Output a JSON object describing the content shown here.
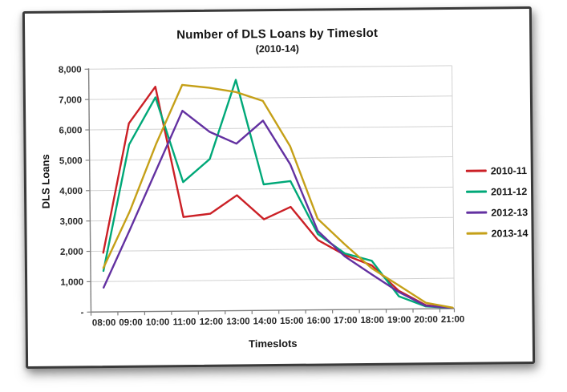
{
  "chart": {
    "title": "Number of DLS Loans by Timeslot",
    "subtitle": "(2010-14)",
    "y_axis": {
      "title": "DLS Loans"
    },
    "x_axis": {
      "title": "Timeslots"
    },
    "colors": {
      "gridline": "#d2d2d2",
      "axis": "#7f7f7f",
      "text": "#262626",
      "frame_border": "#3a3a3a",
      "background": "#ffffff"
    }
  },
  "chart_data": {
    "type": "line",
    "title": "Number of DLS Loans by Timeslot",
    "subtitle": "(2010-14)",
    "xlabel": "Timeslots",
    "ylabel": "DLS Loans",
    "ylim": [
      0,
      8000
    ],
    "y_ticks": [
      0,
      1000,
      2000,
      3000,
      4000,
      5000,
      6000,
      7000,
      8000
    ],
    "y_tick_labels": [
      "-",
      "1,000",
      "2,000",
      "3,000",
      "4,000",
      "5,000",
      "6,000",
      "7,000",
      "8,000"
    ],
    "grid": true,
    "legend_position": "right-center",
    "categories": [
      "08:00",
      "09:00",
      "10:00",
      "11:00",
      "12:00",
      "13:00",
      "14:00",
      "15:00",
      "16:00",
      "17:00",
      "18:00",
      "19:00",
      "20:00",
      "21:00"
    ],
    "series": [
      {
        "name": "2010-11",
        "color": "#CB2026",
        "values": [
          1950,
          6200,
          7400,
          3100,
          3200,
          3800,
          3000,
          3400,
          2300,
          1800,
          1450,
          600,
          120,
          20
        ]
      },
      {
        "name": "2011-12",
        "color": "#00A878",
        "values": [
          1350,
          5500,
          7050,
          4250,
          5000,
          7600,
          4150,
          4250,
          2500,
          1850,
          1600,
          420,
          80,
          20
        ]
      },
      {
        "name": "2012-13",
        "color": "#6331A1",
        "values": [
          800,
          2700,
          4650,
          6600,
          5900,
          5500,
          6250,
          4800,
          2600,
          1750,
          1150,
          560,
          100,
          20
        ]
      },
      {
        "name": "2013-14",
        "color": "#C5A018",
        "values": [
          1450,
          3300,
          5500,
          7450,
          7350,
          7200,
          6900,
          5400,
          3000,
          2150,
          1350,
          780,
          200,
          30
        ]
      }
    ]
  }
}
